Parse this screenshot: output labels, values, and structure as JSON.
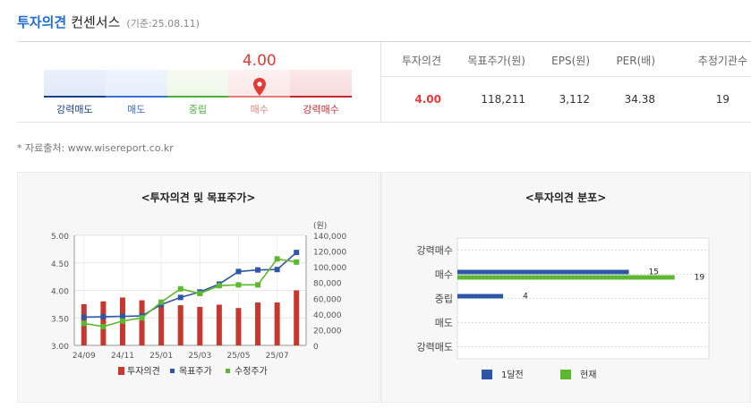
{
  "header": {
    "accent": "투자의견",
    "title": "컨센서스",
    "date": "(기준:25.08.11)"
  },
  "gauge": {
    "value": "4.00",
    "score": 4.0,
    "labels": [
      "강력매도",
      "매도",
      "중립",
      "매수",
      "강력매수"
    ],
    "label_colors": [
      "#1c3f8c",
      "#3b6fcf",
      "#4caf3a",
      "#e57c7c",
      "#c8272d"
    ]
  },
  "stats": {
    "headers": [
      "투자의견",
      "목표주가(원)",
      "EPS(원)",
      "PER(배)",
      "추정기관수"
    ],
    "values": [
      "4.00",
      "118,211",
      "3,112",
      "34.38",
      "19"
    ]
  },
  "source": "* 자료출처: www.wisereport.co.kr",
  "chart_data": [
    {
      "type": "bar+line",
      "title": "<투자의견 및 목표주가>",
      "x_ticks": [
        "24/09",
        "24/11",
        "25/01",
        "25/03",
        "25/05",
        "25/07"
      ],
      "y_left": {
        "ticks": [
          "5.00",
          "4.50",
          "4.00",
          "3.50",
          "3.00"
        ],
        "ylim": [
          3.0,
          5.0
        ]
      },
      "y_right": {
        "unit": "(원)",
        "ticks": [
          "140,000",
          "120,000",
          "100,000",
          "80,000",
          "60,000",
          "40,000",
          "20,000",
          "0"
        ],
        "ylim": [
          0,
          140000
        ]
      },
      "series": [
        {
          "name": "투자의견",
          "kind": "bar",
          "axis": "left",
          "color": "#c8372d",
          "values": [
            3.75,
            3.8,
            3.87,
            3.82,
            3.75,
            3.73,
            3.7,
            3.74,
            3.68,
            3.78,
            3.78,
            4.0
          ]
        },
        {
          "name": "목표주가",
          "kind": "line",
          "axis": "right",
          "color": "#2f56a8",
          "values": [
            36000,
            36500,
            37000,
            37500,
            52000,
            61000,
            68000,
            78000,
            94000,
            96000,
            96500,
            118211
          ]
        },
        {
          "name": "수정주가",
          "kind": "line",
          "axis": "right",
          "color": "#5cb82e",
          "values": [
            28000,
            24000,
            31000,
            35000,
            55000,
            72000,
            66000,
            76000,
            77000,
            77000,
            110000,
            106000
          ]
        }
      ],
      "legend": [
        "투자의견",
        "목표주가",
        "수정주가"
      ]
    },
    {
      "type": "bar",
      "orientation": "horizontal",
      "title": "<투자의견 분포>",
      "categories": [
        "강력매수",
        "매수",
        "중립",
        "매도",
        "강력매도"
      ],
      "xlim": [
        0,
        22
      ],
      "series": [
        {
          "name": "1달전",
          "color": "#2f56a8",
          "values": [
            0,
            15,
            4,
            0,
            0
          ],
          "labels": [
            "",
            "15",
            "4",
            "",
            ""
          ]
        },
        {
          "name": "현재",
          "color": "#5cb82e",
          "values": [
            0,
            19,
            0,
            0,
            0
          ],
          "labels": [
            "",
            "19",
            "",
            "",
            ""
          ]
        }
      ],
      "legend": [
        "1달전",
        "현재"
      ]
    }
  ]
}
